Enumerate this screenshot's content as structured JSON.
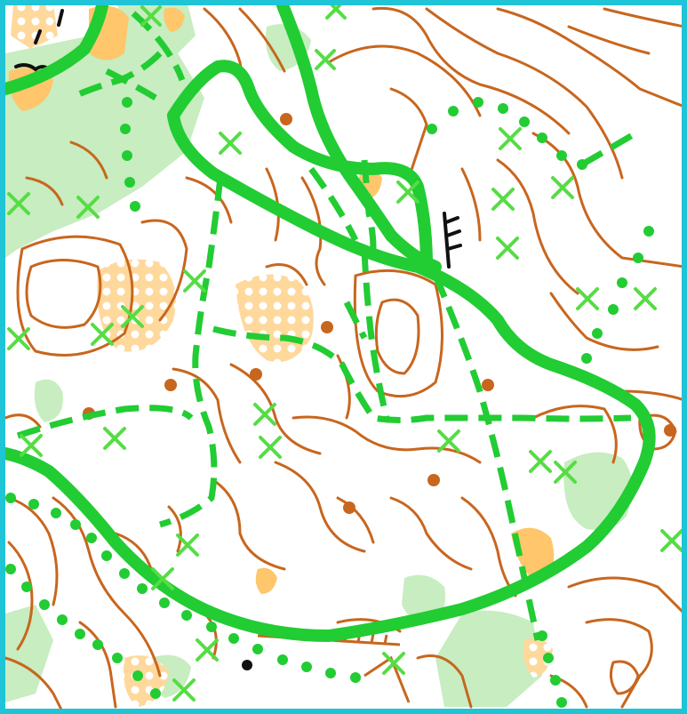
{
  "map": {
    "type": "orienteering-map-excerpt",
    "colors": {
      "frame": "#1fc4d6",
      "background": "#ffffff",
      "vegetation_light": "#c7edc0",
      "vegetation_medium": "#9fe09a",
      "open_land": "#ffc66b",
      "open_land_light": "#ffdfa6",
      "contour": "#c8661e",
      "track": "#22cc33",
      "feature_dark": "#111111"
    },
    "symbols": [
      "contour-line",
      "green-track",
      "dashed-path",
      "dotted-path",
      "green-x-marker",
      "knoll-dot",
      "cliff-mark",
      "open-land-area",
      "vegetation-area"
    ]
  }
}
